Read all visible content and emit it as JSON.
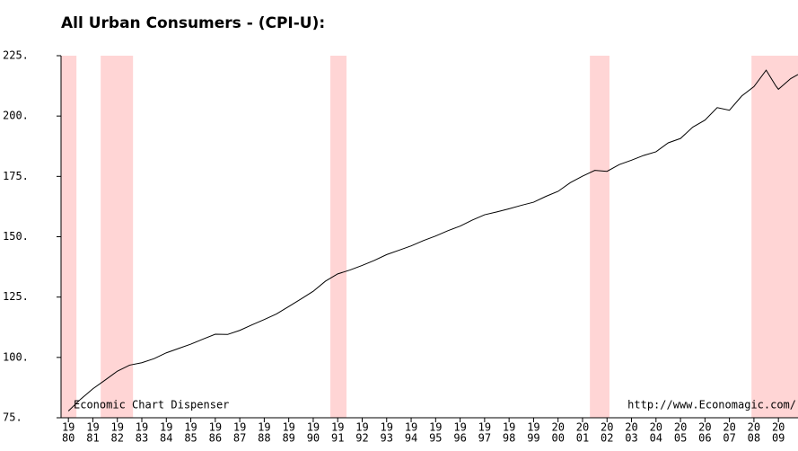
{
  "chart_data": {
    "type": "line",
    "title": "All Urban Consumers - (CPI-U):",
    "annotations": [
      "Economic Chart Dispenser",
      "http://www.Economagic.com/"
    ],
    "x": [
      1980.0,
      1980.5,
      1981.0,
      1981.5,
      1982.0,
      1982.5,
      1983.0,
      1983.5,
      1984.0,
      1984.5,
      1985.0,
      1985.5,
      1986.0,
      1986.5,
      1987.0,
      1987.5,
      1988.0,
      1988.5,
      1989.0,
      1989.5,
      1990.0,
      1990.5,
      1991.0,
      1991.5,
      1992.0,
      1992.5,
      1993.0,
      1993.5,
      1994.0,
      1994.5,
      1995.0,
      1995.5,
      1996.0,
      1996.5,
      1997.0,
      1997.5,
      1998.0,
      1998.5,
      1999.0,
      1999.5,
      2000.0,
      2000.5,
      2001.0,
      2001.5,
      2002.0,
      2002.5,
      2003.0,
      2003.5,
      2004.0,
      2004.5,
      2005.0,
      2005.5,
      2006.0,
      2006.5,
      2007.0,
      2007.5,
      2008.0,
      2008.5,
      2008.9,
      2009.0,
      2009.5,
      2009.8
    ],
    "series": [
      {
        "name": "CPI-U",
        "color": "#000000",
        "values": [
          77.8,
          82.7,
          87.0,
          90.6,
          94.3,
          96.8,
          97.8,
          99.5,
          101.9,
          103.7,
          105.5,
          107.6,
          109.6,
          109.5,
          111.2,
          113.5,
          115.7,
          118.0,
          121.1,
          124.2,
          127.4,
          131.6,
          134.6,
          136.2,
          138.1,
          140.2,
          142.6,
          144.4,
          146.2,
          148.4,
          150.3,
          152.5,
          154.4,
          156.9,
          159.1,
          160.3,
          161.6,
          163.0,
          164.3,
          166.7,
          168.8,
          172.4,
          175.1,
          177.5,
          177.1,
          179.9,
          181.7,
          183.7,
          185.2,
          188.9,
          190.7,
          195.4,
          198.3,
          203.5,
          202.4,
          208.3,
          212.2,
          219.0,
          212.4,
          211.1,
          215.5,
          217.2
        ]
      }
    ],
    "shaded_ranges": [
      [
        1979.7,
        1980.33
      ],
      [
        1981.32,
        1982.64
      ],
      [
        1990.7,
        1991.36
      ],
      [
        2001.3,
        2002.1
      ],
      [
        2007.9,
        2009.8
      ]
    ],
    "xlim": [
      1979.7,
      2009.8
    ],
    "ylim": [
      75,
      225
    ],
    "yticks": [
      {
        "value": 225,
        "label": "225."
      },
      {
        "value": 200,
        "label": "200."
      },
      {
        "value": 175,
        "label": "175."
      },
      {
        "value": 150,
        "label": "150."
      },
      {
        "value": 125,
        "label": "125."
      },
      {
        "value": 100,
        "label": "100."
      },
      {
        "value": 75,
        "label": "75."
      }
    ],
    "xticks": [
      {
        "value": 1980,
        "label": [
          "19",
          "80"
        ]
      },
      {
        "value": 1981,
        "label": [
          "19",
          "81"
        ]
      },
      {
        "value": 1982,
        "label": [
          "19",
          "82"
        ]
      },
      {
        "value": 1983,
        "label": [
          "19",
          "83"
        ]
      },
      {
        "value": 1984,
        "label": [
          "19",
          "84"
        ]
      },
      {
        "value": 1985,
        "label": [
          "19",
          "85"
        ]
      },
      {
        "value": 1986,
        "label": [
          "19",
          "86"
        ]
      },
      {
        "value": 1987,
        "label": [
          "19",
          "87"
        ]
      },
      {
        "value": 1988,
        "label": [
          "19",
          "88"
        ]
      },
      {
        "value": 1989,
        "label": [
          "19",
          "89"
        ]
      },
      {
        "value": 1990,
        "label": [
          "19",
          "90"
        ]
      },
      {
        "value": 1991,
        "label": [
          "19",
          "91"
        ]
      },
      {
        "value": 1992,
        "label": [
          "19",
          "92"
        ]
      },
      {
        "value": 1993,
        "label": [
          "19",
          "93"
        ]
      },
      {
        "value": 1994,
        "label": [
          "19",
          "94"
        ]
      },
      {
        "value": 1995,
        "label": [
          "19",
          "95"
        ]
      },
      {
        "value": 1996,
        "label": [
          "19",
          "96"
        ]
      },
      {
        "value": 1997,
        "label": [
          "19",
          "97"
        ]
      },
      {
        "value": 1998,
        "label": [
          "19",
          "98"
        ]
      },
      {
        "value": 1999,
        "label": [
          "19",
          "99"
        ]
      },
      {
        "value": 2000,
        "label": [
          "20",
          "00"
        ]
      },
      {
        "value": 2001,
        "label": [
          "20",
          "01"
        ]
      },
      {
        "value": 2002,
        "label": [
          "20",
          "02"
        ]
      },
      {
        "value": 2003,
        "label": [
          "20",
          "03"
        ]
      },
      {
        "value": 2004,
        "label": [
          "20",
          "04"
        ]
      },
      {
        "value": 2005,
        "label": [
          "20",
          "05"
        ]
      },
      {
        "value": 2006,
        "label": [
          "20",
          "06"
        ]
      },
      {
        "value": 2007,
        "label": [
          "20",
          "07"
        ]
      },
      {
        "value": 2008,
        "label": [
          "20",
          "08"
        ]
      },
      {
        "value": 2009,
        "label": [
          "20",
          "09"
        ]
      }
    ],
    "shade_color": "#ffd5d5"
  }
}
